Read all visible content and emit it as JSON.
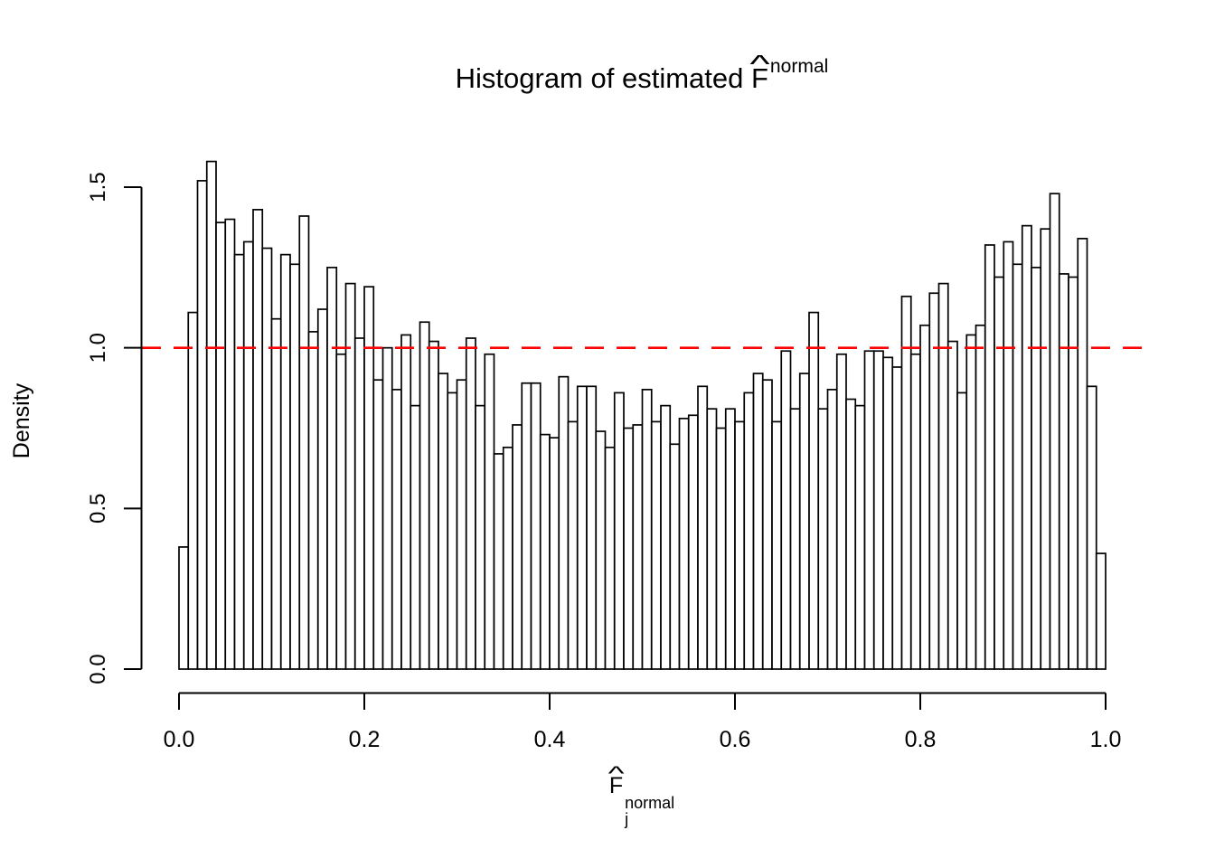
{
  "figure": {
    "background": "#ffffff",
    "title": {
      "prefix": "Histogram of estimated ",
      "symbol": "F",
      "hat": "^",
      "superscript": "normal"
    },
    "x_axis": {
      "label": {
        "symbol": "F",
        "hat": "^",
        "subscript": "j",
        "superscript": "normal"
      },
      "tick_labels": [
        "0.0",
        "0.2",
        "0.4",
        "0.6",
        "0.8",
        "1.0"
      ],
      "tick_values": [
        0,
        0.2,
        0.4,
        0.6,
        0.8,
        1.0
      ]
    },
    "y_axis": {
      "label": "Density",
      "tick_labels": [
        "0.0",
        "0.5",
        "1.0",
        "1.5"
      ],
      "tick_values": [
        0,
        0.5,
        1.0,
        1.5
      ]
    },
    "colors": {
      "axis": "#000000",
      "bar_fill": "#ffffff",
      "bar_outline": "#000000",
      "reference_line": "#ff0000"
    }
  },
  "chart_data": {
    "type": "bar",
    "title": "Histogram of estimated F^normal (F-hat)",
    "xlabel": "F_j^normal (F-hat)",
    "ylabel": "Density",
    "xlim": [
      0,
      1
    ],
    "ylim": [
      0,
      1.5
    ],
    "grid": false,
    "legend": false,
    "bin_start": 0.0,
    "bin_width": 0.01,
    "reference_line_y": 1.0,
    "reference_line_style": "dashed",
    "values": [
      0.38,
      1.11,
      1.52,
      1.58,
      1.39,
      1.4,
      1.29,
      1.33,
      1.43,
      1.31,
      1.09,
      1.29,
      1.26,
      1.41,
      1.05,
      1.12,
      1.25,
      0.98,
      1.2,
      1.03,
      1.19,
      0.9,
      1.0,
      0.87,
      1.04,
      0.82,
      1.08,
      1.02,
      0.92,
      0.86,
      0.9,
      1.03,
      0.82,
      0.98,
      0.67,
      0.69,
      0.76,
      0.89,
      0.89,
      0.73,
      0.72,
      0.91,
      0.77,
      0.88,
      0.88,
      0.74,
      0.69,
      0.86,
      0.75,
      0.76,
      0.87,
      0.77,
      0.82,
      0.7,
      0.78,
      0.79,
      0.88,
      0.81,
      0.75,
      0.81,
      0.77,
      0.86,
      0.92,
      0.9,
      0.77,
      0.99,
      0.81,
      0.92,
      1.11,
      0.81,
      0.87,
      0.98,
      0.84,
      0.82,
      0.99,
      0.99,
      0.97,
      0.94,
      1.16,
      0.98,
      1.07,
      1.17,
      1.2,
      1.02,
      0.86,
      1.04,
      1.07,
      1.32,
      1.22,
      1.33,
      1.26,
      1.38,
      1.25,
      1.37,
      1.48,
      1.23,
      1.22,
      1.34,
      0.88,
      0.36
    ]
  }
}
